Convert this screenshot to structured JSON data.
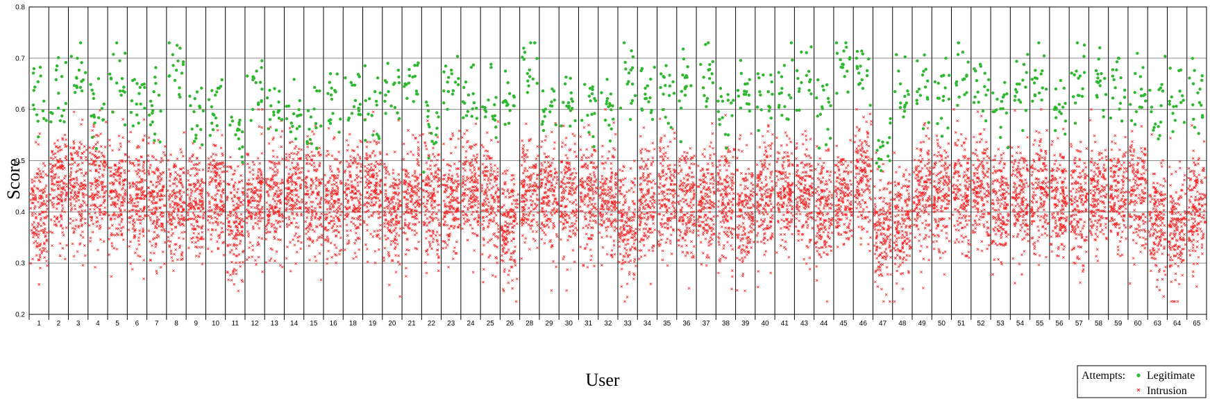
{
  "chart_data": {
    "type": "scatter",
    "title": "",
    "xlabel": "User",
    "ylabel": "Score",
    "ylim": [
      0.2,
      0.8
    ],
    "yticks": [
      "0.2",
      "0.3",
      "0.4",
      "0.5",
      "0.6",
      "0.7",
      "0.8"
    ],
    "grid": true,
    "legend_placement": "bottom-right",
    "legend_title": "Attempts:",
    "categories": [
      "1",
      "2",
      "3",
      "4",
      "5",
      "6",
      "7",
      "8",
      "9",
      "10",
      "11",
      "12",
      "13",
      "14",
      "15",
      "16",
      "18",
      "19",
      "20",
      "21",
      "22",
      "23",
      "24",
      "25",
      "26",
      "28",
      "29",
      "30",
      "31",
      "32",
      "33",
      "34",
      "35",
      "36",
      "37",
      "38",
      "39",
      "40",
      "41",
      "43",
      "44",
      "45",
      "46",
      "47",
      "48",
      "49",
      "50",
      "51",
      "52",
      "53",
      "54",
      "55",
      "56",
      "57",
      "58",
      "59",
      "60",
      "63",
      "64",
      "65"
    ],
    "series": [
      {
        "name": "Legitimate",
        "marker": "circle",
        "color": "#2eb82e",
        "approx_center": [
          0.61,
          0.62,
          0.67,
          0.6,
          0.65,
          0.63,
          0.61,
          0.68,
          0.6,
          0.61,
          0.57,
          0.64,
          0.6,
          0.59,
          0.56,
          0.62,
          0.62,
          0.6,
          0.63,
          0.66,
          0.55,
          0.66,
          0.62,
          0.6,
          0.62,
          0.69,
          0.6,
          0.61,
          0.6,
          0.6,
          0.65,
          0.63,
          0.64,
          0.65,
          0.66,
          0.6,
          0.64,
          0.62,
          0.64,
          0.65,
          0.6,
          0.69,
          0.66,
          0.52,
          0.64,
          0.64,
          0.64,
          0.67,
          0.65,
          0.61,
          0.63,
          0.65,
          0.6,
          0.66,
          0.65,
          0.66,
          0.62,
          0.61,
          0.62,
          0.61
        ],
        "approx_spread": 0.035
      },
      {
        "name": "Intrusion",
        "marker": "x",
        "color": "#ff2020",
        "approx_center": [
          0.4,
          0.45,
          0.45,
          0.45,
          0.43,
          0.42,
          0.42,
          0.42,
          0.42,
          0.44,
          0.38,
          0.42,
          0.42,
          0.43,
          0.43,
          0.41,
          0.43,
          0.45,
          0.4,
          0.43,
          0.42,
          0.43,
          0.44,
          0.43,
          0.37,
          0.44,
          0.43,
          0.44,
          0.43,
          0.43,
          0.38,
          0.42,
          0.43,
          0.42,
          0.42,
          0.42,
          0.4,
          0.43,
          0.44,
          0.43,
          0.4,
          0.42,
          0.47,
          0.36,
          0.37,
          0.44,
          0.43,
          0.44,
          0.44,
          0.42,
          0.43,
          0.44,
          0.42,
          0.42,
          0.43,
          0.43,
          0.43,
          0.38,
          0.37,
          0.41
        ],
        "approx_spread": 0.055
      }
    ]
  }
}
